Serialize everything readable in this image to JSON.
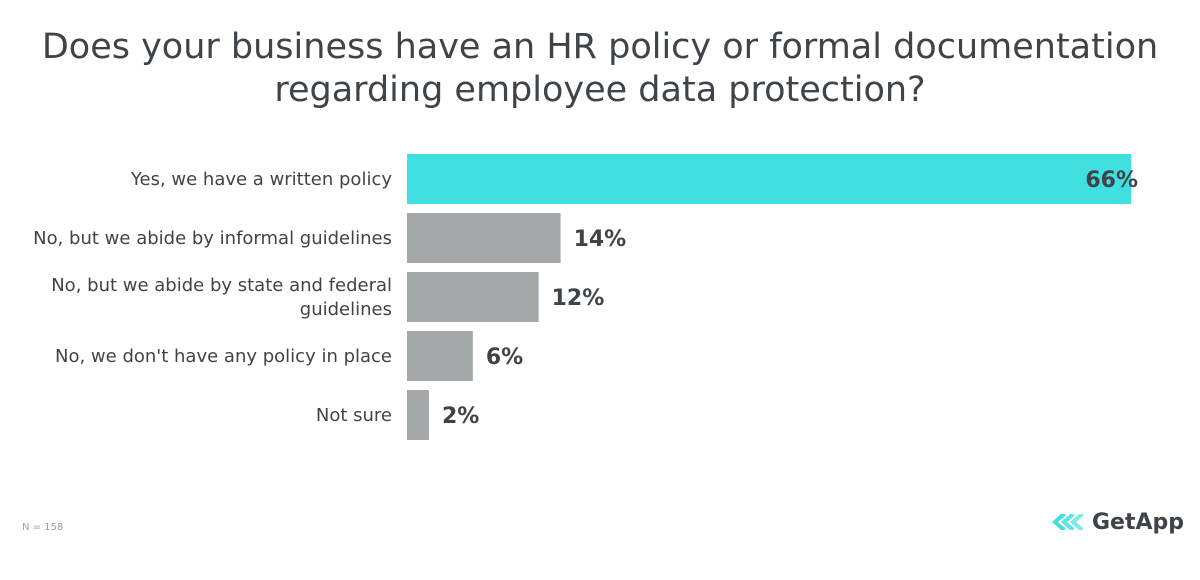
{
  "title_lines": [
    "Does your business have an HR policy or formal documentation",
    "regarding employee data protection?"
  ],
  "chart_data": {
    "type": "bar",
    "orientation": "horizontal",
    "title": "Does your business have an HR policy or formal documentation regarding employee data protection?",
    "categories": [
      [
        "Yes, we have a written policy"
      ],
      [
        "No, but we abide by informal guidelines"
      ],
      [
        "No, but we abide by state and federal",
        "guidelines"
      ],
      [
        "No, we don't have any policy in place"
      ],
      [
        "Not sure"
      ]
    ],
    "values": [
      66,
      14,
      12,
      6,
      2
    ],
    "value_labels": [
      "66%",
      "14%",
      "12%",
      "6%",
      "2%"
    ],
    "unit": "%",
    "xlim": [
      0,
      66
    ],
    "highlight_color": "#40e0e0",
    "bar_color": "#a5a8a9"
  },
  "footnote": "N = 158",
  "brand": {
    "name": "GetApp",
    "icon": "getapp-chevrons-icon",
    "color": "#40e0e0"
  }
}
